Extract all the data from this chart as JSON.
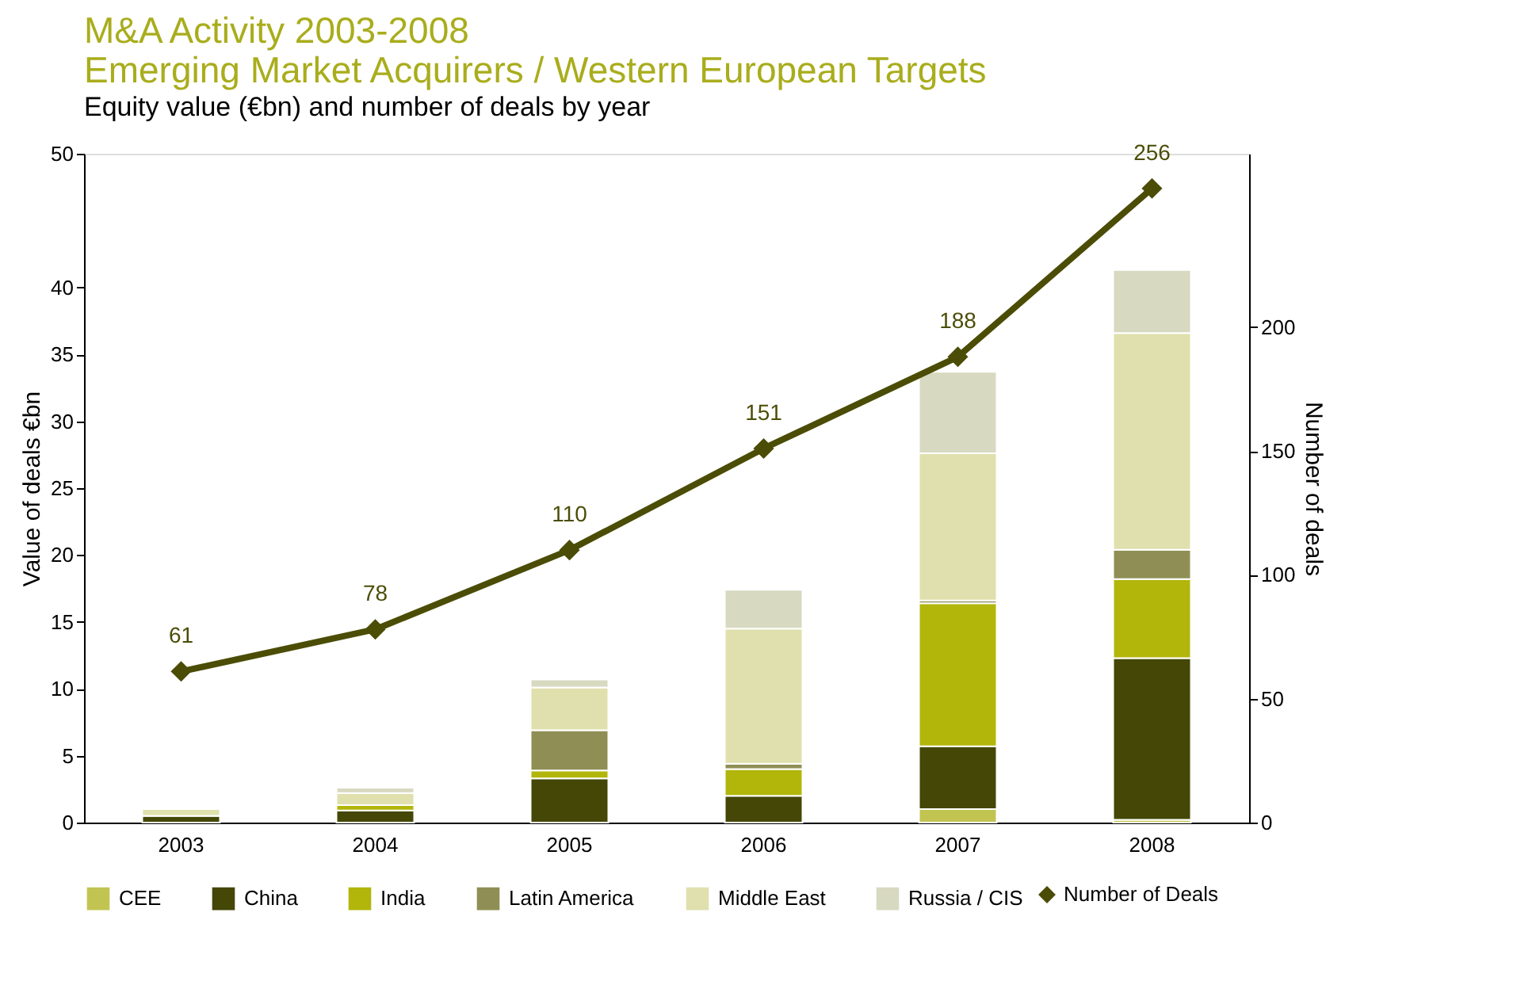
{
  "chart_data": {
    "type": "bar",
    "title": "M&A Activity 2003-2008\nEmerging Market Acquirers / Western European Targets",
    "subtitle": "Equity value (€bn) and number of deals by year",
    "ylabel": "Value of deals €bn",
    "y2label": "Number of deals",
    "categories": [
      "2003",
      "2004",
      "2005",
      "2006",
      "2007",
      "2008"
    ],
    "stacked": true,
    "legend": "bottom",
    "marker": "diamond",
    "line_style": "solid",
    "ylim": [
      0,
      50
    ],
    "yticks": [
      0,
      5,
      10,
      15,
      20,
      25,
      30,
      35,
      40,
      50
    ],
    "y2lim": [
      0,
      270
    ],
    "y2ticks": [
      0,
      50,
      100,
      150,
      200
    ],
    "series": [
      {
        "name": "CEE",
        "color": "#c2c452",
        "values": [
          null,
          null,
          null,
          null,
          1.0,
          0.2
        ]
      },
      {
        "name": "China",
        "color": "#444705",
        "values": [
          0.5,
          0.9,
          3.3,
          2.0,
          4.7,
          12.1
        ]
      },
      {
        "name": "India",
        "color": "#b2b60b",
        "values": [
          0,
          0.4,
          0.6,
          2.0,
          10.7,
          5.9
        ]
      },
      {
        "name": "Latin America",
        "color": "#8f8f55",
        "values": [
          null,
          null,
          3.0,
          0.4,
          0.2,
          2.2
        ]
      },
      {
        "name": "Middle East",
        "color": "#dfe0ad",
        "values": [
          0.5,
          0.9,
          3.2,
          10.1,
          11.0,
          16.2
        ]
      },
      {
        "name": "Russia / CIS",
        "color": "#d8d9c1",
        "values": [
          null,
          0.4,
          0.6,
          2.9,
          6.1,
          4.7
        ]
      },
      {
        "name": "Number of Deals",
        "type": "line",
        "axis": "y2",
        "color": "#4b4d06",
        "values": [
          61,
          78,
          110,
          151,
          188,
          256
        ],
        "value_labels": [
          "61",
          "78",
          "110",
          "151",
          "188",
          "256"
        ]
      }
    ]
  }
}
